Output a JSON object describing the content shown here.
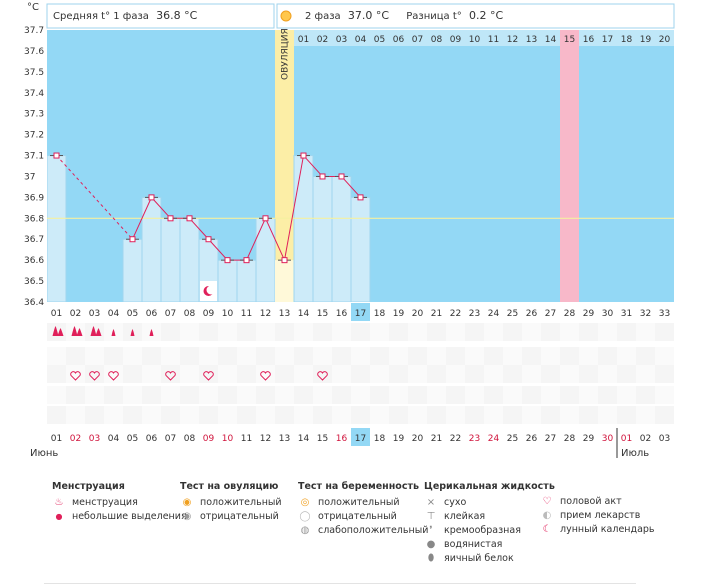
{
  "header": {
    "unit": "°C",
    "phase1_label": "Средняя t° 1 фаза",
    "phase1_value": "36.8 °C",
    "phase2_label": "2 фаза",
    "phase2_value": "37.0 °C",
    "diff_label": "Разница t°",
    "diff_value": "0.2 °C",
    "ovulation_label": "ОВУЛЯЦИЯ"
  },
  "chart_data": {
    "type": "line",
    "ylim": [
      36.4,
      37.7
    ],
    "yticks": [
      "37.7",
      "37.6",
      "37.5",
      "37.4",
      "37.3",
      "37.2",
      "37.1",
      "37",
      "36.9",
      "36.8",
      "36.7",
      "36.6",
      "36.5",
      "36.4"
    ],
    "cycle_days": [
      "01",
      "02",
      "03",
      "04",
      "05",
      "06",
      "07",
      "08",
      "09",
      "10",
      "11",
      "12",
      "13",
      "14",
      "15",
      "16",
      "17",
      "18",
      "19",
      "20",
      "21",
      "22",
      "23",
      "24",
      "25",
      "26",
      "27",
      "28",
      "29",
      "30",
      "31",
      "32",
      "33"
    ],
    "top_day_labels": [
      "01",
      "02",
      "03",
      "04",
      "05",
      "06",
      "07",
      "08",
      "09",
      "10",
      "11",
      "12",
      "13",
      "14",
      "15",
      "16",
      "17",
      "18",
      "19",
      "20"
    ],
    "temperatures": [
      37.1,
      null,
      null,
      null,
      36.7,
      36.9,
      36.8,
      36.8,
      36.7,
      36.6,
      36.6,
      36.8,
      36.6,
      37.1,
      37.0,
      37.0,
      36.9,
      null,
      null,
      null,
      null,
      null,
      null,
      null,
      null,
      null,
      null,
      null,
      null,
      null,
      null,
      null,
      null
    ],
    "coverline": 36.8,
    "ovulation_day": 13,
    "current_day": 17,
    "highlight_top_day": 15,
    "highlight_top_column": 28,
    "moon_day": 9,
    "menstruation_days": [
      1,
      2,
      3,
      4,
      5,
      6
    ],
    "menstruation_heavy": [
      1,
      2,
      3
    ],
    "intercourse_days": [
      2,
      3,
      4,
      7,
      9,
      12,
      15
    ],
    "calendar_dates": [
      "01",
      "02",
      "03",
      "04",
      "05",
      "06",
      "07",
      "08",
      "09",
      "10",
      "11",
      "12",
      "13",
      "14",
      "15",
      "16",
      "17",
      "18",
      "19",
      "20",
      "21",
      "22",
      "23",
      "24",
      "25",
      "26",
      "27",
      "28",
      "29",
      "30",
      "01",
      "02",
      "03"
    ],
    "calendar_red": [
      2,
      3,
      9,
      10,
      16,
      23,
      24,
      30,
      31
    ],
    "month_start": "Июнь",
    "month_next": "Июль",
    "month_next_index": 31
  },
  "legend": {
    "menstruation": {
      "title": "Менструация",
      "items": [
        "менструация",
        "небольшие выделения"
      ]
    },
    "ovulation_test": {
      "title": "Тест на овуляцию",
      "items": [
        "положительный",
        "отрицательный"
      ]
    },
    "pregnancy_test": {
      "title": "Тест на беременность",
      "items": [
        "положительный",
        "отрицательный",
        "слабоположительный"
      ]
    },
    "cervical": {
      "title": "Церикальная жидкость",
      "items": [
        "сухо",
        "клейкая",
        "кремообразная",
        "водянистая",
        "яичный белок"
      ]
    },
    "other": {
      "items": [
        "половой акт",
        "прием лекарств",
        "лунный календарь"
      ]
    }
  },
  "colors": {
    "sky": "#93d8f5",
    "bar_fill": "#cdebf9",
    "bar_border": "#9fd6ef",
    "ovulation": "#fceea6",
    "highlight": "#f8b8c9",
    "line": "#e0205a",
    "coverline": "#f5f0a0",
    "red_text": "#d0143c"
  }
}
